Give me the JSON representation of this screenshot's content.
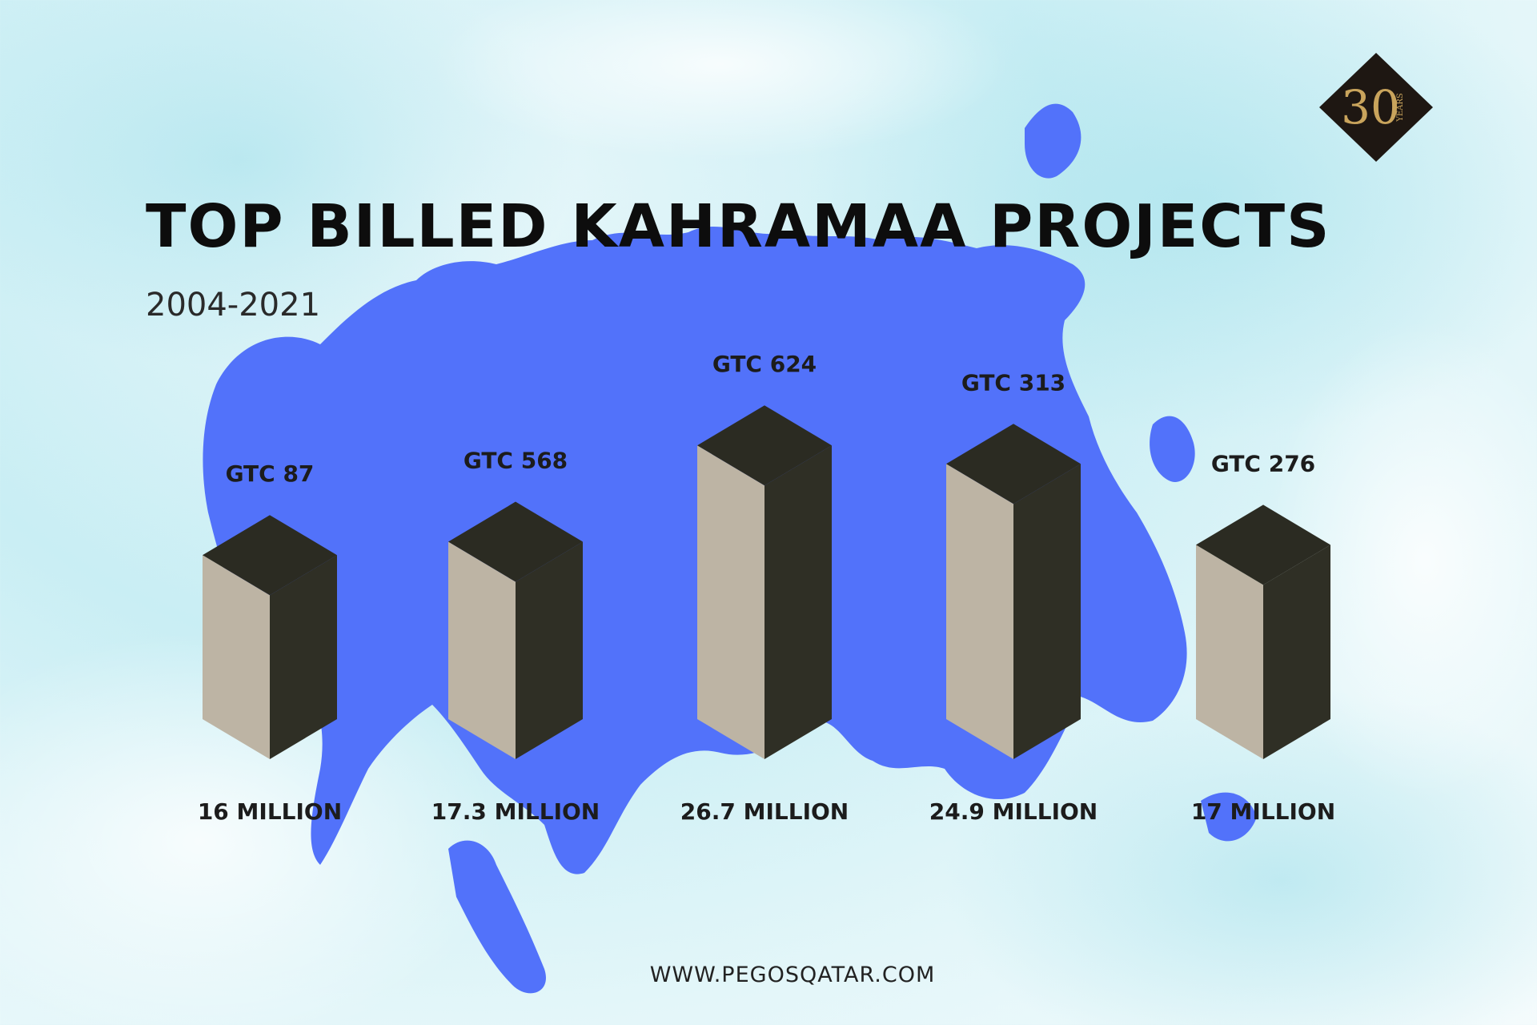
{
  "header": {
    "title": "TOP BILLED KAHRAMAA PROJECTS",
    "subtitle": "2004-2021"
  },
  "footer": {
    "website": "WWW.PEGOSQATAR.COM"
  },
  "logo": {
    "numeral": "30",
    "caption": "YEARS"
  },
  "colors": {
    "bar_front": "#bdb4a4",
    "bar_side": "#2f2f25",
    "bar_top": "#2b2b22",
    "map": "#5272fa"
  },
  "chart_data": {
    "type": "bar",
    "categories": [
      "GTC 87",
      "GTC 568",
      "GTC 624",
      "GTC 313",
      "GTC 276"
    ],
    "values": [
      16,
      17.3,
      26.7,
      24.9,
      17
    ],
    "value_labels": [
      "16 MILLION",
      "17.3 MILLION",
      "26.7 MILLION",
      "24.9 MILLION",
      "17 MILLION"
    ],
    "title": "TOP BILLED KAHRAMAA PROJECTS",
    "subtitle": "2004-2021",
    "xlabel": "",
    "ylabel": "",
    "ylim": [
      0,
      30
    ],
    "grid": false,
    "legend": "none"
  }
}
